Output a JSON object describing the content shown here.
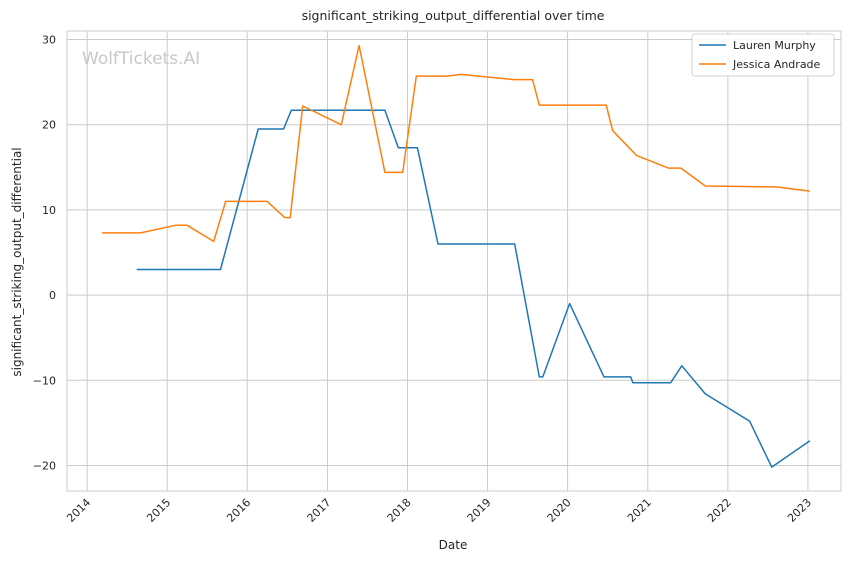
{
  "chart_data": {
    "type": "line",
    "title": "significant_striking_output_differential over time",
    "xlabel": "Date",
    "ylabel": "significant_striking_output_differential",
    "watermark": "WolfTickets.AI",
    "xlim": [
      "2013-10-01",
      "2023-06-01"
    ],
    "ylim": [
      -23,
      31
    ],
    "x_ticks": [
      "2014",
      "2015",
      "2016",
      "2017",
      "2018",
      "2019",
      "2020",
      "2021",
      "2022",
      "2023"
    ],
    "y_ticks": [
      30,
      20,
      10,
      0,
      -10,
      -20
    ],
    "y_tick_labels": [
      "30",
      "20",
      "10",
      "0",
      "−10",
      "−20"
    ],
    "grid": true,
    "legend_position": "top-right",
    "series": [
      {
        "name": "Lauren Murphy",
        "color": "#1f77b4",
        "points": [
          [
            "2014-08-15",
            3
          ],
          [
            "2015-09-01",
            3
          ],
          [
            "2016-02-20",
            19.5
          ],
          [
            "2016-06-15",
            19.5
          ],
          [
            "2016-07-20",
            21.7
          ],
          [
            "2017-09-20",
            21.7
          ],
          [
            "2017-11-20",
            17.3
          ],
          [
            "2018-02-15",
            17.3
          ],
          [
            "2018-05-20",
            6
          ],
          [
            "2019-05-05",
            6
          ],
          [
            "2019-08-25",
            -9.6
          ],
          [
            "2019-09-10",
            -9.6
          ],
          [
            "2020-01-10",
            -1
          ],
          [
            "2020-06-15",
            -9.6
          ],
          [
            "2020-10-15",
            -9.6
          ],
          [
            "2020-10-25",
            -10.3
          ],
          [
            "2021-04-15",
            -10.3
          ],
          [
            "2021-06-05",
            -8.3
          ],
          [
            "2021-09-20",
            -11.6
          ],
          [
            "2022-04-10",
            -14.8
          ],
          [
            "2022-07-20",
            -20.2
          ],
          [
            "2023-01-10",
            -17.1
          ]
        ]
      },
      {
        "name": "Jessica Andrade",
        "color": "#ff7f0e",
        "points": [
          [
            "2014-03-10",
            7.3
          ],
          [
            "2014-09-01",
            7.3
          ],
          [
            "2015-02-10",
            8.2
          ],
          [
            "2015-04-01",
            8.2
          ],
          [
            "2015-08-01",
            6.3
          ],
          [
            "2015-09-25",
            11
          ],
          [
            "2016-04-01",
            11
          ],
          [
            "2016-06-20",
            9.1
          ],
          [
            "2016-07-15",
            9.1
          ],
          [
            "2016-09-10",
            22.2
          ],
          [
            "2017-03-05",
            20
          ],
          [
            "2017-05-25",
            29.3
          ],
          [
            "2017-09-20",
            14.4
          ],
          [
            "2017-12-10",
            14.4
          ],
          [
            "2018-02-10",
            25.7
          ],
          [
            "2018-07-01",
            25.7
          ],
          [
            "2018-09-01",
            25.9
          ],
          [
            "2019-05-01",
            25.3
          ],
          [
            "2019-07-25",
            25.3
          ],
          [
            "2019-08-25",
            22.3
          ],
          [
            "2020-06-25",
            22.3
          ],
          [
            "2020-07-25",
            19.3
          ],
          [
            "2020-11-10",
            16.4
          ],
          [
            "2021-04-05",
            14.9
          ],
          [
            "2021-06-01",
            14.9
          ],
          [
            "2021-09-20",
            12.8
          ],
          [
            "2022-08-10",
            12.7
          ],
          [
            "2023-01-10",
            12.2
          ]
        ]
      }
    ]
  }
}
